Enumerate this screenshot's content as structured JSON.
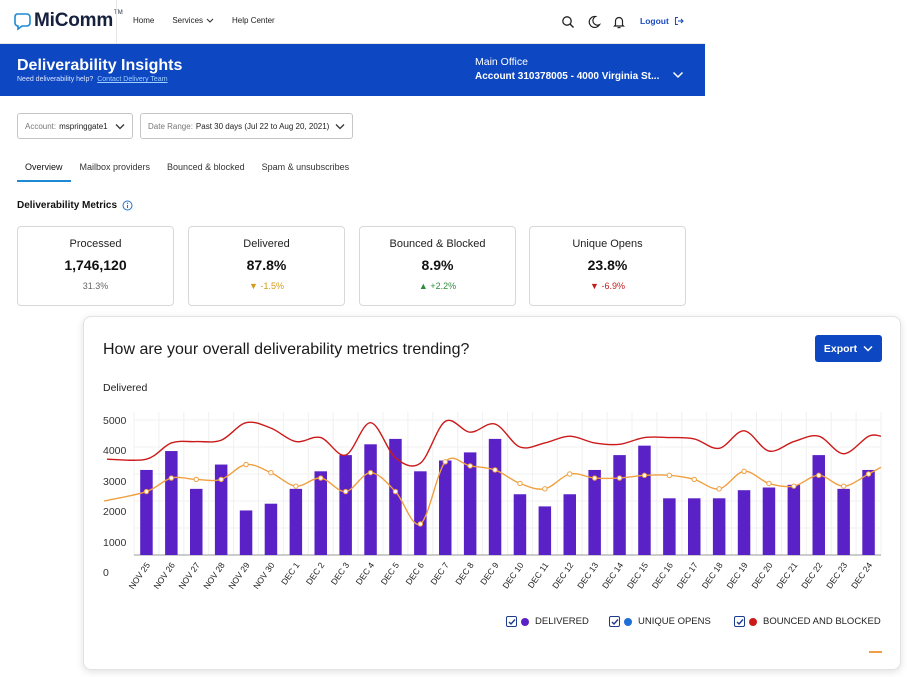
{
  "app": {
    "logo_text": "MiComm",
    "logo_tm": "TM"
  },
  "nav": {
    "home": "Home",
    "services": "Services",
    "help_center": "Help Center",
    "logout": "Logout"
  },
  "banner": {
    "title": "Deliverability Insights",
    "help_text": "Need deliverability help?",
    "help_link": "Contact Delivery Team",
    "office_label": "Main Office",
    "account": "Account 310378005 - 4000 Virginia St..."
  },
  "filters": {
    "account_label": "Account:",
    "account_value": "mspringgate1",
    "range_label": "Date Range:",
    "range_value": "Past 30 days (Jul 22 to Aug 20, 2021)"
  },
  "tabs": [
    "Overview",
    "Mailbox providers",
    "Bounced & blocked",
    "Spam & unsubscribes"
  ],
  "metrics_title": "Deliverability Metrics",
  "cards": [
    {
      "label": "Processed",
      "value": "1,746,120",
      "change": "31.3%",
      "arrow": ""
    },
    {
      "label": "Delivered",
      "value": "87.8%",
      "change": "-1.5%",
      "arrow": "▼"
    },
    {
      "label": "Bounced & Blocked",
      "value": "8.9%",
      "change": "+2.2%",
      "arrow": "▲"
    },
    {
      "label": "Unique Opens",
      "value": "23.8%",
      "change": "-6.9%",
      "arrow": "▼"
    }
  ],
  "panel": {
    "title": "How are your overall deliverability metrics trending?",
    "export_label": "Export",
    "subtitle": "Delivered",
    "legend": [
      {
        "label": "DELIVERED",
        "color": "#5a22c6"
      },
      {
        "label": "UNIQUE OPENS",
        "color": "#1f6fd6"
      },
      {
        "label": "BOUNCED AND BLOCKED",
        "color": "#cc1a1a"
      }
    ]
  },
  "colors": {
    "brand_blue": "#0d47c1",
    "bar_purple": "#5a22c6",
    "line_orange": "#f0a040",
    "line_red": "#cc1a1a"
  },
  "chart_data": {
    "type": "bar",
    "categories": [
      "NOV 25",
      "NOV 26",
      "NOV 27",
      "NOV 28",
      "NOV 29",
      "NOV 30",
      "DEC 1",
      "DEC 2",
      "DEC 3",
      "DEC 4",
      "DEC 5",
      "DEC 6",
      "DEC 7",
      "DEC 8",
      "DEC 9",
      "DEC 10",
      "DEC 11",
      "DEC 12",
      "DEC 13",
      "DEC 14",
      "DEC 15",
      "DEC 16",
      "DEC 17",
      "DEC 18",
      "DEC 19",
      "DEC 20",
      "DEC 21",
      "DEC 22",
      "DEC 23",
      "DEC 24"
    ],
    "y_ticks": [
      "0",
      "1000",
      "2000",
      "3000",
      "4000",
      "5000"
    ],
    "ylim": [
      0,
      5000
    ],
    "grid": true,
    "legend_position": "bottom-right",
    "series": [
      {
        "name": "DELIVERED",
        "type": "bar",
        "values": [
          3150,
          3850,
          2450,
          3350,
          1650,
          1900,
          2450,
          3100,
          3700,
          4100,
          4300,
          3100,
          3500,
          3800,
          4300,
          2250,
          1800,
          2250,
          3150,
          3700,
          4050,
          2100,
          2100,
          2100,
          2400,
          2500,
          2600,
          3700,
          2450,
          3150
        ]
      },
      {
        "name": "UNIQUE OPENS",
        "type": "line",
        "values": [
          2350,
          2850,
          2800,
          2800,
          3350,
          3050,
          2550,
          2850,
          2350,
          3050,
          2350,
          1150,
          3450,
          3300,
          3150,
          2650,
          2450,
          3000,
          2850,
          2850,
          2950,
          2950,
          2800,
          2450,
          3100,
          2650,
          2550,
          2950,
          2550,
          3000
        ]
      },
      {
        "name": "BOUNCED AND BLOCKED",
        "type": "line",
        "values": [
          3550,
          4150,
          4200,
          4250,
          4900,
          4700,
          4200,
          4350,
          3700,
          4900,
          3600,
          3400,
          4950,
          4550,
          4850,
          4000,
          4150,
          4400,
          4150,
          4100,
          4350,
          4350,
          4300,
          3950,
          4600,
          3850,
          4200,
          4400,
          3750,
          4400
        ]
      }
    ]
  }
}
